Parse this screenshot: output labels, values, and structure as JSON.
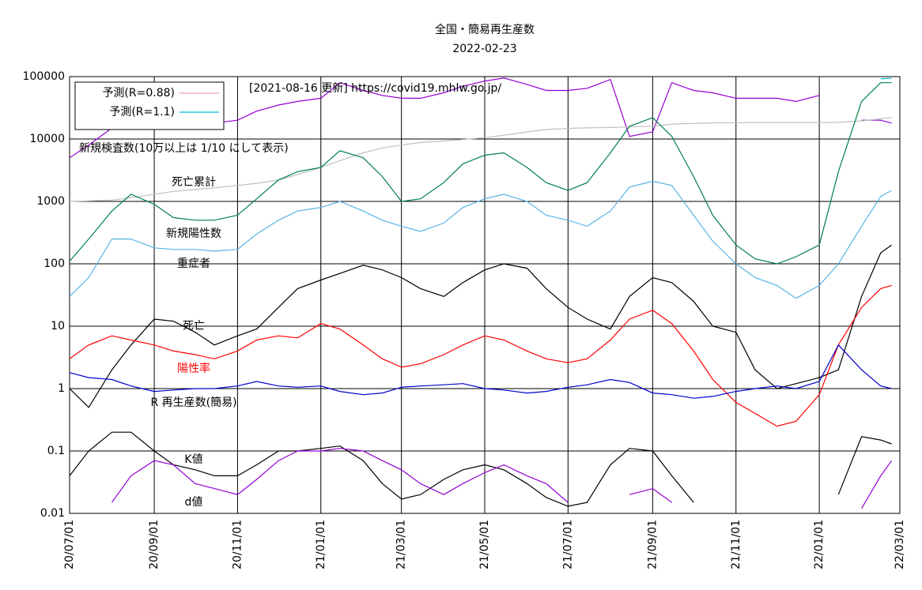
{
  "chart_data": {
    "type": "line",
    "title": "全国・簡易再生産数",
    "subtitle": "2022-02-23",
    "log_scale": true,
    "grid": true,
    "legend": "top-left",
    "xlim": [
      "20/07/01",
      "22/03/01"
    ],
    "xticks": [
      "20/07/01",
      "20/09/01",
      "20/11/01",
      "21/01/01",
      "21/03/01",
      "21/05/01",
      "21/07/01",
      "21/09/01",
      "21/11/01",
      "22/01/01",
      "22/03/01"
    ],
    "ylim": [
      0.01,
      100000
    ],
    "yticks": [
      0.01,
      0.1,
      1,
      10,
      100,
      1000,
      10000,
      100000
    ],
    "annotations": [
      {
        "text": "[2021-08-16 更新] https://covid19.mhlw.go.jp/",
        "color": "#000000"
      },
      {
        "text": "新規検査数(10万以上は 1/10 にして表示)",
        "color": "#000000"
      },
      {
        "text": "死亡累計",
        "color": "#000000"
      },
      {
        "text": "新規陽性数",
        "color": "#000000"
      },
      {
        "text": "重症者",
        "color": "#000000"
      },
      {
        "text": "死亡",
        "color": "#000000"
      },
      {
        "text": "陽性率",
        "color": "#ff0000"
      },
      {
        "text": "R  再生産数(簡易)",
        "color": "#000000"
      },
      {
        "text": "K値",
        "color": "#000000"
      },
      {
        "text": "d値",
        "color": "#000000"
      }
    ],
    "x": [
      "20/07/01",
      "20/07/15",
      "20/08/01",
      "20/08/15",
      "20/09/01",
      "20/09/15",
      "20/10/01",
      "20/10/15",
      "20/11/01",
      "20/11/15",
      "20/12/01",
      "20/12/15",
      "21/01/01",
      "21/01/15",
      "21/02/01",
      "21/02/15",
      "21/03/01",
      "21/03/15",
      "21/04/01",
      "21/04/15",
      "21/05/01",
      "21/05/15",
      "21/06/01",
      "21/06/15",
      "21/07/01",
      "21/07/15",
      "21/08/01",
      "21/08/15",
      "21/09/01",
      "21/09/15",
      "21/10/01",
      "21/10/15",
      "21/11/01",
      "21/11/15",
      "21/12/01",
      "21/12/15",
      "22/01/01",
      "22/01/15",
      "22/02/01",
      "22/02/15",
      "22/02/23"
    ],
    "series": [
      {
        "name": "予測(R=0.88)",
        "color": "#f0a0b0",
        "legend": true,
        "values": [
          null,
          null,
          null,
          null,
          null,
          null,
          null,
          null,
          null,
          null,
          null,
          null,
          null,
          null,
          null,
          null,
          null,
          null,
          null,
          null,
          null,
          null,
          null,
          null,
          null,
          null,
          null,
          null,
          null,
          null,
          null,
          null,
          null,
          null,
          null,
          null,
          null,
          null,
          null,
          null,
          null
        ]
      },
      {
        "name": "予測(R=1.1)",
        "color": "#00bfe0",
        "legend": true,
        "values": [
          null,
          null,
          null,
          null,
          null,
          null,
          null,
          null,
          null,
          null,
          null,
          null,
          null,
          null,
          null,
          null,
          null,
          null,
          null,
          null,
          null,
          null,
          null,
          null,
          null,
          null,
          null,
          null,
          null,
          null,
          null,
          null,
          null,
          null,
          null,
          null,
          null,
          null,
          null,
          92000,
          95000
        ]
      },
      {
        "color": "#9400d3",
        "values": [
          5000,
          8000,
          15000,
          25000,
          22000,
          18000,
          20000,
          18000,
          20000,
          28000,
          35000,
          40000,
          45000,
          80000,
          60000,
          50000,
          45000,
          45000,
          55000,
          70000,
          85000,
          95000,
          75000,
          60000,
          60000,
          65000,
          90000,
          11000,
          13000,
          80000,
          60000,
          55000,
          45000,
          45000,
          45000,
          40000,
          50000,
          null,
          20000,
          20000,
          18000
        ]
      },
      {
        "color": "#c0c0c0",
        "values": [
          1000,
          1020,
          1050,
          1150,
          1300,
          1450,
          1550,
          1650,
          1800,
          1950,
          2200,
          2700,
          3500,
          4500,
          6000,
          7200,
          8000,
          8800,
          9300,
          9800,
          10500,
          11500,
          13000,
          14200,
          14800,
          15100,
          15300,
          15600,
          16000,
          17300,
          17800,
          18100,
          18300,
          18400,
          18400,
          18400,
          18400,
          18500,
          19500,
          21000,
          22000
        ]
      },
      {
        "color": "#00804a",
        "values": [
          110,
          250,
          700,
          1300,
          900,
          550,
          500,
          500,
          600,
          1100,
          2200,
          3000,
          3500,
          6500,
          5000,
          2500,
          1000,
          1100,
          2000,
          4000,
          5500,
          6000,
          3500,
          2000,
          1500,
          2000,
          6000,
          16000,
          22000,
          11000,
          2500,
          600,
          200,
          120,
          100,
          130,
          200,
          3000,
          40000,
          80000,
          80000
        ]
      },
      {
        "color": "#58b4e6",
        "values": [
          30,
          60,
          250,
          250,
          180,
          170,
          170,
          160,
          170,
          300,
          500,
          700,
          800,
          1000,
          700,
          500,
          400,
          330,
          450,
          800,
          1100,
          1300,
          1000,
          600,
          500,
          400,
          700,
          1700,
          2100,
          1800,
          600,
          230,
          100,
          60,
          45,
          28,
          45,
          100,
          400,
          1200,
          1500
        ]
      },
      {
        "color": "#000000",
        "values": [
          1,
          0.5,
          2,
          5,
          13,
          12,
          8,
          5,
          7,
          9,
          20,
          40,
          55,
          70,
          95,
          80,
          60,
          40,
          30,
          50,
          80,
          100,
          85,
          40,
          20,
          13,
          9,
          30,
          60,
          50,
          25,
          10,
          8,
          2,
          1,
          1.2,
          1.5,
          2,
          30,
          150,
          200
        ]
      },
      {
        "color": "#ff0000",
        "values": [
          3,
          5,
          7,
          6,
          5,
          4,
          3.5,
          3,
          4,
          6,
          7,
          6.5,
          11,
          9,
          5,
          3,
          2.2,
          2.5,
          3.5,
          5,
          7,
          6,
          4,
          3,
          2.6,
          3,
          6,
          13,
          18,
          11,
          4,
          1.4,
          0.6,
          0.4,
          0.25,
          0.3,
          0.8,
          5,
          20,
          40,
          45
        ]
      },
      {
        "color": "#0000cc",
        "values": [
          1.8,
          1.5,
          1.4,
          1.1,
          0.9,
          0.95,
          1.0,
          1.0,
          1.1,
          1.3,
          1.1,
          1.05,
          1.1,
          0.9,
          0.8,
          0.85,
          1.05,
          1.1,
          1.15,
          1.2,
          1.0,
          0.95,
          0.85,
          0.9,
          1.05,
          1.15,
          1.4,
          1.25,
          0.85,
          0.8,
          0.7,
          0.75,
          0.9,
          1.0,
          1.1,
          1.0,
          1.3,
          5,
          2,
          1.1,
          1.0
        ]
      },
      {
        "color": "#000000",
        "values": [
          0.04,
          0.1,
          0.2,
          0.2,
          0.1,
          0.06,
          0.05,
          0.04,
          0.04,
          0.06,
          0.1,
          0.1,
          0.11,
          0.12,
          0.07,
          0.03,
          0.017,
          0.02,
          0.035,
          0.05,
          0.06,
          0.05,
          0.03,
          0.018,
          0.013,
          0.015,
          0.06,
          0.11,
          0.1,
          0.04,
          0.015,
          null,
          null,
          null,
          null,
          null,
          null,
          0.02,
          0.17,
          0.15,
          0.13
        ]
      },
      {
        "color": "#9400d3",
        "values": [
          null,
          null,
          0.015,
          0.04,
          0.07,
          0.06,
          0.03,
          0.025,
          0.02,
          0.035,
          0.07,
          0.1,
          0.1,
          0.11,
          0.1,
          0.07,
          0.05,
          0.03,
          0.02,
          0.03,
          0.045,
          0.06,
          0.04,
          0.03,
          0.015,
          null,
          null,
          0.02,
          0.025,
          0.015,
          null,
          null,
          null,
          null,
          null,
          null,
          null,
          null,
          0.012,
          0.04,
          0.07
        ]
      }
    ]
  }
}
